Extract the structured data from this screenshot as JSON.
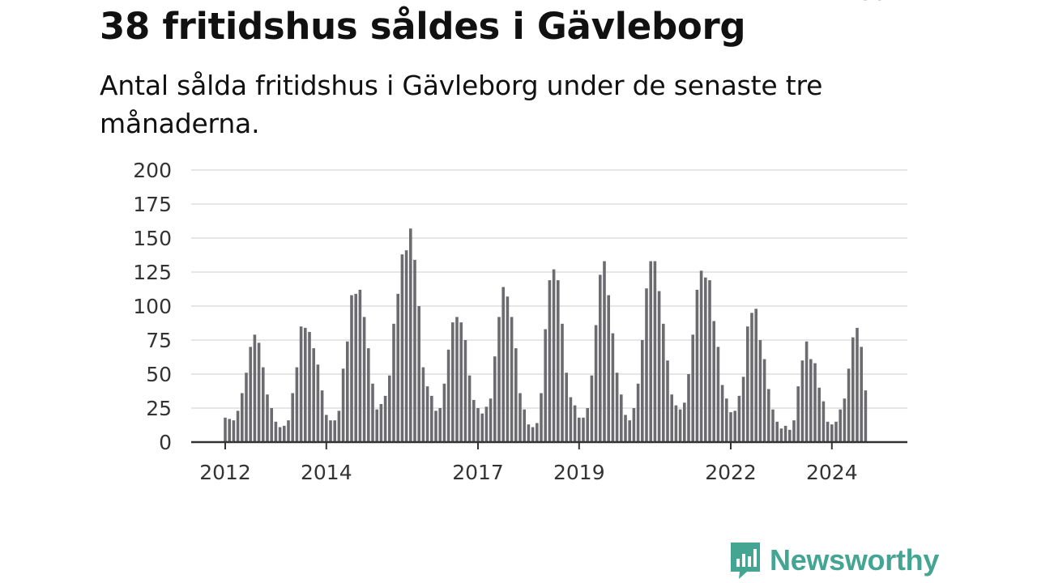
{
  "header": {
    "title": "38 fritidshus såldes i Gävleborg",
    "subtitle": "Antal sålda fritidshus i Gävleborg under de senaste tre månaderna."
  },
  "brand": {
    "name": "Newsworthy",
    "icon": "newsworthy-logo-icon",
    "color": "#44a593"
  },
  "colors": {
    "bar": "#6c6b70",
    "highlight": "#2a958a",
    "grid": "#dddddd",
    "axis": "#333333"
  },
  "chart_data": {
    "type": "bar",
    "title": "38 fritidshus såldes i Gävleborg",
    "subtitle": "Antal sålda fritidshus i Gävleborg under de senaste tre månaderna.",
    "ylim": [
      0,
      200
    ],
    "yticks": [
      0,
      25,
      50,
      75,
      100,
      125,
      150,
      175,
      200
    ],
    "xticks": [
      {
        "label": "2012",
        "index": 0
      },
      {
        "label": "2014",
        "index": 24
      },
      {
        "label": "2017",
        "index": 60
      },
      {
        "label": "2019",
        "index": 84
      },
      {
        "label": "2022",
        "index": 120
      },
      {
        "label": "2024",
        "index": 144
      }
    ],
    "grid": true,
    "legend": "none",
    "highlight_index": 154,
    "highlight_label": "38",
    "values": [
      18,
      17,
      16,
      23,
      36,
      51,
      70,
      79,
      73,
      55,
      35,
      25,
      15,
      11,
      12,
      16,
      36,
      55,
      85,
      84,
      81,
      69,
      57,
      38,
      20,
      16,
      16,
      23,
      54,
      74,
      108,
      109,
      112,
      92,
      69,
      43,
      24,
      28,
      34,
      49,
      87,
      109,
      138,
      141,
      157,
      134,
      100,
      55,
      41,
      34,
      23,
      25,
      43,
      68,
      88,
      92,
      88,
      75,
      49,
      31,
      25,
      21,
      26,
      32,
      63,
      92,
      114,
      107,
      92,
      69,
      36,
      24,
      13,
      11,
      14,
      36,
      83,
      119,
      127,
      119,
      87,
      51,
      33,
      27,
      18,
      18,
      25,
      49,
      86,
      123,
      133,
      108,
      80,
      51,
      35,
      20,
      16,
      25,
      43,
      75,
      113,
      133,
      133,
      111,
      87,
      60,
      35,
      27,
      24,
      29,
      50,
      79,
      112,
      126,
      121,
      119,
      89,
      70,
      42,
      32,
      22,
      23,
      34,
      48,
      85,
      95,
      98,
      75,
      61,
      39,
      24,
      15,
      10,
      12,
      9,
      16,
      41,
      60,
      74,
      61,
      58,
      40,
      30,
      15,
      13,
      15,
      24,
      32,
      54,
      77,
      84,
      70,
      38
    ]
  }
}
